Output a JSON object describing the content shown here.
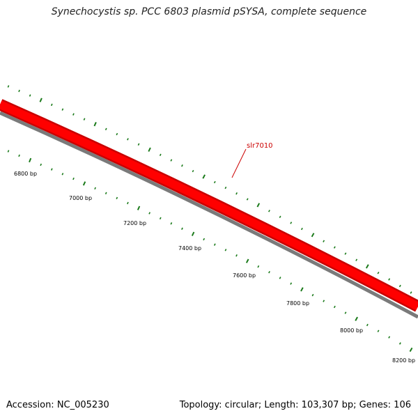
{
  "title": "Synechocystis sp. PCC 6803 plasmid pSYSA, complete sequence",
  "footer": {
    "accession": "Accession: NC_005230",
    "summary": "Topology: circular; Length: 103,307 bp; Genes: 106"
  },
  "colors": {
    "gene_band": "#ff0000",
    "gene_band_dark": "#c80000",
    "backbone": "#7a7a7a",
    "tick": "#1a7a1a",
    "gene_label": "#cc0000",
    "label_line": "#cc0000"
  },
  "gene": {
    "name": "slr7010"
  },
  "scale": {
    "major_step_bp": 200,
    "labels": [
      "6800 bp",
      "7000 bp",
      "7200 bp",
      "7400 bp",
      "7600 bp",
      "7800 bp",
      "8000 bp",
      "8200 bp"
    ]
  }
}
